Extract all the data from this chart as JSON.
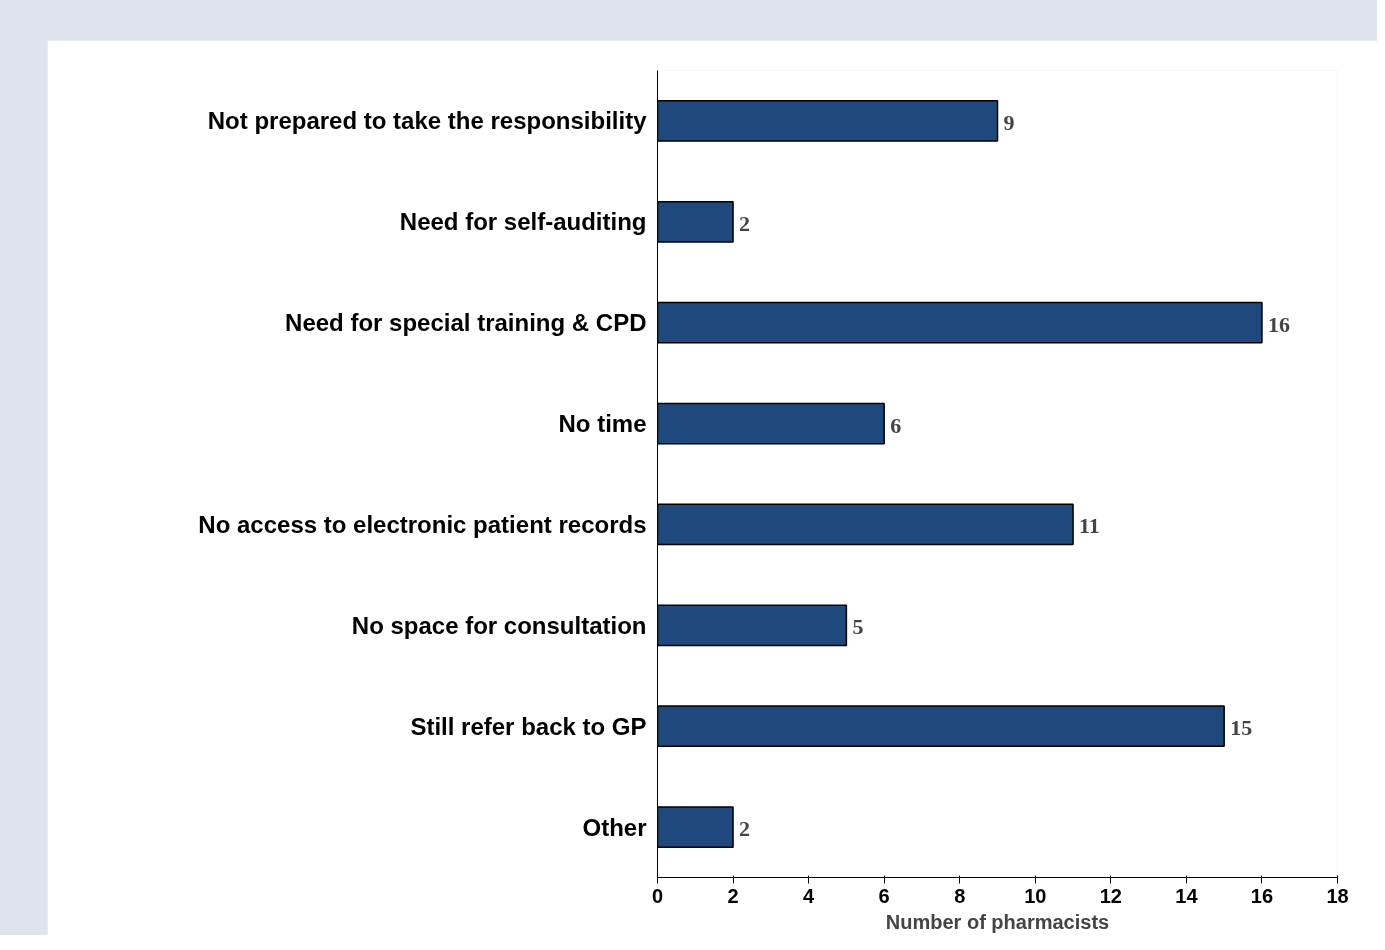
{
  "chart_data": {
    "type": "bar",
    "orientation": "horizontal",
    "xlabel": "Number of pharmacists",
    "categories": [
      "Not prepared to take the responsibility",
      "Need for self-auditing",
      "Need for special training & CPD",
      "No time",
      "No access to electronic patient records",
      "No space for consultation",
      "Still refer back to GP",
      "Other"
    ],
    "values": [
      9,
      2,
      16,
      6,
      11,
      5,
      15,
      2
    ],
    "color": "#1f497d",
    "xlim": [
      0,
      18
    ],
    "xticks": [
      0,
      2,
      4,
      6,
      8,
      10,
      12,
      14,
      16,
      18
    ],
    "grid": false,
    "data_labels": true
  }
}
